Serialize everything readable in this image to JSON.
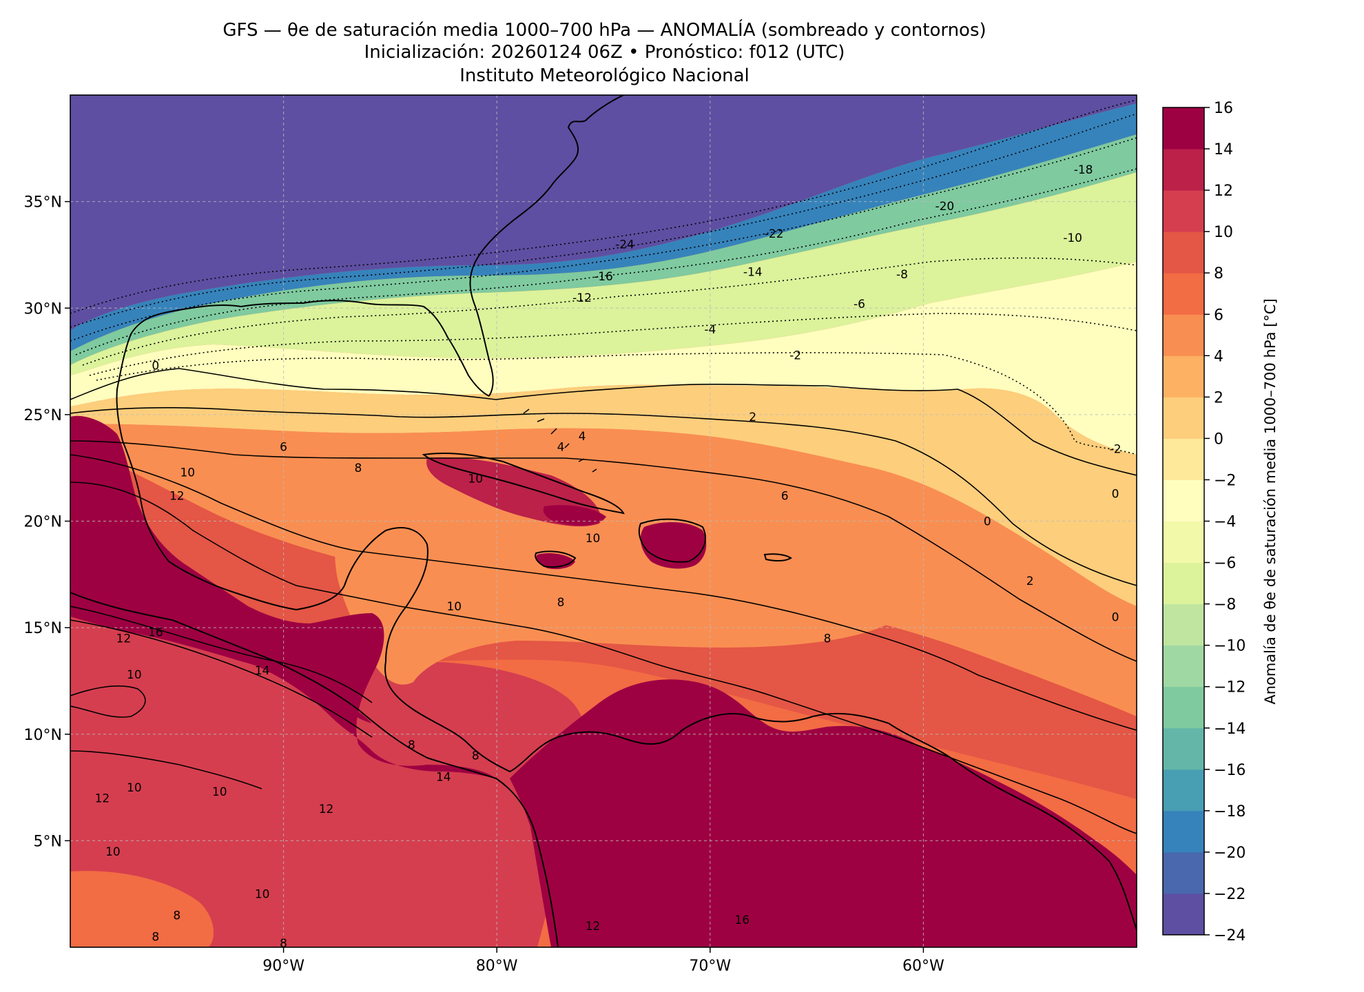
{
  "title": {
    "line1": "GFS — θe de saturación media 1000–700 hPa — ANOMALÍA (sombreado y contornos)",
    "line2": "Inicialización: 20260124 06Z   •   Pronóstico: f012 (UTC)",
    "line3": "Instituto Meteorológico Nacional"
  },
  "map": {
    "lon_range": [
      -100,
      -50
    ],
    "lat_range": [
      0,
      40
    ],
    "lon_ticks": [
      {
        "value": -90,
        "label": "90°W"
      },
      {
        "value": -80,
        "label": "80°W"
      },
      {
        "value": -70,
        "label": "70°W"
      },
      {
        "value": -60,
        "label": "60°W"
      }
    ],
    "lat_ticks": [
      {
        "value": 35,
        "label": "35°N"
      },
      {
        "value": 30,
        "label": "30°N"
      },
      {
        "value": 25,
        "label": "25°N"
      },
      {
        "value": 20,
        "label": "20°N"
      },
      {
        "value": 15,
        "label": "15°N"
      },
      {
        "value": 10,
        "label": "10°N"
      },
      {
        "value": 5,
        "label": "5°N"
      }
    ],
    "gridlines": true,
    "contour_labels": [
      {
        "text": "-24",
        "lon": -74,
        "lat": 33.0
      },
      {
        "text": "-22",
        "lon": -67,
        "lat": 33.5
      },
      {
        "text": "-20",
        "lon": -59,
        "lat": 34.8
      },
      {
        "text": "-18",
        "lon": -52.5,
        "lat": 36.5
      },
      {
        "text": "-16",
        "lon": -75,
        "lat": 31.5
      },
      {
        "text": "-14",
        "lon": -68,
        "lat": 31.7
      },
      {
        "text": "-12",
        "lon": -76,
        "lat": 30.5
      },
      {
        "text": "-10",
        "lon": -53,
        "lat": 33.3
      },
      {
        "text": "-8",
        "lon": -61,
        "lat": 31.6
      },
      {
        "text": "-6",
        "lon": -63,
        "lat": 30.2
      },
      {
        "text": "-4",
        "lon": -70,
        "lat": 29.0
      },
      {
        "text": "-2",
        "lon": -66,
        "lat": 27.8
      },
      {
        "text": "-2",
        "lon": -51,
        "lat": 23.4
      },
      {
        "text": "0",
        "lon": -96,
        "lat": 27.3
      },
      {
        "text": "0",
        "lon": -51,
        "lat": 21.3
      },
      {
        "text": "0",
        "lon": -57,
        "lat": 20.0
      },
      {
        "text": "0",
        "lon": -51,
        "lat": 15.5
      },
      {
        "text": "2",
        "lon": -68,
        "lat": 24.9
      },
      {
        "text": "2",
        "lon": -55,
        "lat": 17.2
      },
      {
        "text": "4",
        "lon": -76,
        "lat": 24.0
      },
      {
        "text": "4",
        "lon": -77,
        "lat": 23.5
      },
      {
        "text": "6",
        "lon": -90,
        "lat": 23.5
      },
      {
        "text": "6",
        "lon": -66.5,
        "lat": 21.2
      },
      {
        "text": "8",
        "lon": -86.5,
        "lat": 22.5
      },
      {
        "text": "8",
        "lon": -77,
        "lat": 16.2
      },
      {
        "text": "8",
        "lon": -64.5,
        "lat": 14.5
      },
      {
        "text": "8",
        "lon": -84,
        "lat": 9.5
      },
      {
        "text": "8",
        "lon": -81,
        "lat": 9.0
      },
      {
        "text": "8",
        "lon": -95,
        "lat": 1.5
      },
      {
        "text": "8",
        "lon": -96,
        "lat": 0.5
      },
      {
        "text": "8",
        "lon": -90,
        "lat": 0.2
      },
      {
        "text": "10",
        "lon": -94.5,
        "lat": 22.3
      },
      {
        "text": "10",
        "lon": -81,
        "lat": 22.0
      },
      {
        "text": "10",
        "lon": -75.5,
        "lat": 19.2
      },
      {
        "text": "10",
        "lon": -82,
        "lat": 16.0
      },
      {
        "text": "10",
        "lon": -97,
        "lat": 12.8
      },
      {
        "text": "10",
        "lon": -97,
        "lat": 7.5
      },
      {
        "text": "10",
        "lon": -93,
        "lat": 7.3
      },
      {
        "text": "10",
        "lon": -98,
        "lat": 4.5
      },
      {
        "text": "10",
        "lon": -91,
        "lat": 2.5
      },
      {
        "text": "12",
        "lon": -95,
        "lat": 21.2
      },
      {
        "text": "12",
        "lon": -97.5,
        "lat": 14.5
      },
      {
        "text": "12",
        "lon": -98.5,
        "lat": 7.0
      },
      {
        "text": "12",
        "lon": -88,
        "lat": 6.5
      },
      {
        "text": "12",
        "lon": -75.5,
        "lat": 1.0
      },
      {
        "text": "14",
        "lon": -91,
        "lat": 13.0
      },
      {
        "text": "14",
        "lon": -82.5,
        "lat": 8.0
      },
      {
        "text": "16",
        "lon": -96,
        "lat": 14.8
      },
      {
        "text": "16",
        "lon": -68.5,
        "lat": 1.3
      }
    ]
  },
  "colorbar": {
    "label": "Anomalía de θe de saturación media 1000–700 hPa [°C]",
    "min": -24,
    "max": 16,
    "step": 2,
    "tick_labels": [
      "16",
      "14",
      "12",
      "10",
      "8",
      "6",
      "4",
      "2",
      "0",
      "−2",
      "−4",
      "−6",
      "−8",
      "−10",
      "−12",
      "−14",
      "−16",
      "−18",
      "−20",
      "−22",
      "−24"
    ],
    "colors": [
      "#5e4fa2",
      "#4a68ad",
      "#3683bb",
      "#489eb3",
      "#64b6a9",
      "#7fca9f",
      "#a0d8a3",
      "#bfe5a0",
      "#dcf29b",
      "#f2f9a8",
      "#fffebe",
      "#fee89a",
      "#fdce7c",
      "#fdb163",
      "#f98e52",
      "#f26c44",
      "#e45645",
      "#d53e4f",
      "#bb2149",
      "#9e0142"
    ]
  }
}
